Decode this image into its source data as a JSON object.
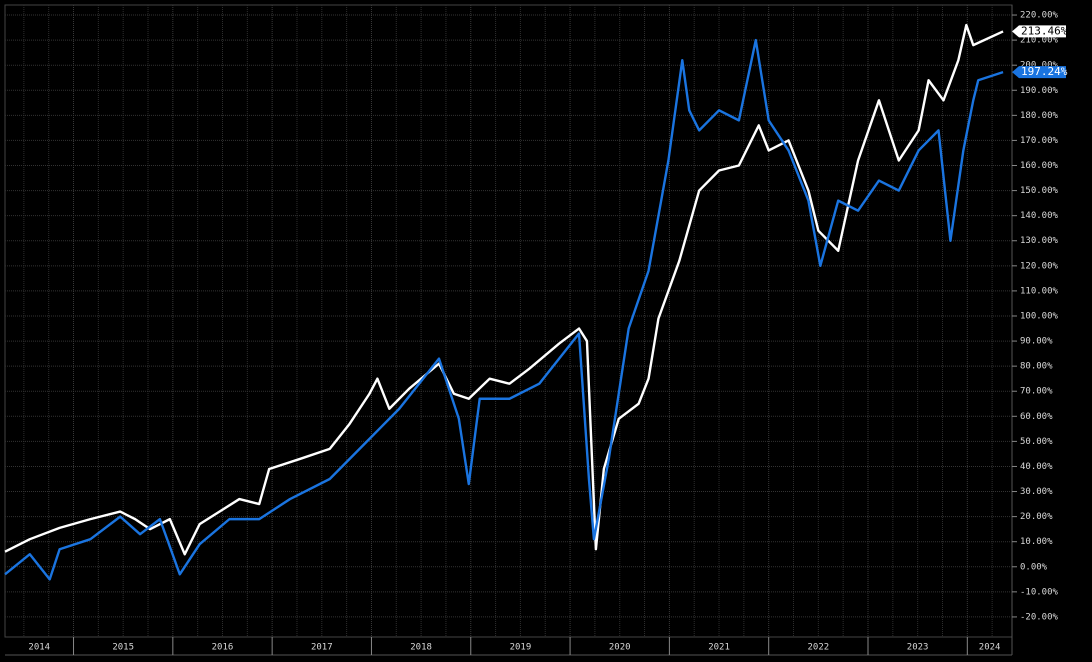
{
  "chart_data": {
    "type": "line",
    "xlim": [
      2014.31,
      2024.45
    ],
    "xticks": [
      {
        "value": 2014,
        "label": "2014"
      },
      {
        "value": 2015,
        "label": "2015"
      },
      {
        "value": 2016,
        "label": "2016"
      },
      {
        "value": 2017,
        "label": "2017"
      },
      {
        "value": 2018,
        "label": "2018"
      },
      {
        "value": 2019,
        "label": "2019"
      },
      {
        "value": 2020,
        "label": "2020"
      },
      {
        "value": 2021,
        "label": "2021"
      },
      {
        "value": 2022,
        "label": "2022"
      },
      {
        "value": 2023,
        "label": "2023"
      },
      {
        "value": 2024,
        "label": "2024"
      }
    ],
    "ylim": [
      -28,
      224
    ],
    "yticks": [
      {
        "value": -20,
        "label": "-20.00%"
      },
      {
        "value": -10,
        "label": "-10.00%"
      },
      {
        "value": 0,
        "label": "0.00%"
      },
      {
        "value": 10,
        "label": "10.00%"
      },
      {
        "value": 20,
        "label": "20.00%"
      },
      {
        "value": 30,
        "label": "30.00%"
      },
      {
        "value": 40,
        "label": "40.00%"
      },
      {
        "value": 50,
        "label": "50.00%"
      },
      {
        "value": 60,
        "label": "60.00%"
      },
      {
        "value": 70,
        "label": "70.00%"
      },
      {
        "value": 80,
        "label": "80.00%"
      },
      {
        "value": 90,
        "label": "90.00%"
      },
      {
        "value": 100,
        "label": "100.00%"
      },
      {
        "value": 110,
        "label": "110.00%"
      },
      {
        "value": 120,
        "label": "120.00%"
      },
      {
        "value": 130,
        "label": "130.00%"
      },
      {
        "value": 140,
        "label": "140.00%"
      },
      {
        "value": 150,
        "label": "150.00%"
      },
      {
        "value": 160,
        "label": "160.00%"
      },
      {
        "value": 170,
        "label": "170.00%"
      },
      {
        "value": 180,
        "label": "180.00%"
      },
      {
        "value": 190,
        "label": "190.00%"
      },
      {
        "value": 200,
        "label": "200.00%"
      },
      {
        "value": 210,
        "label": "210.00%"
      },
      {
        "value": 220,
        "label": "220.00%"
      }
    ],
    "grid": true,
    "series": [
      {
        "color": "#ffffff",
        "x": [
          2014.31,
          2014.56,
          2014.86,
          2015.17,
          2015.47,
          2015.62,
          2015.77,
          2015.97,
          2016.12,
          2016.27,
          2016.67,
          2016.87,
          2016.97,
          2017.28,
          2017.58,
          2017.78,
          2017.98,
          2018.06,
          2018.18,
          2018.38,
          2018.68,
          2018.83,
          2018.98,
          2019.19,
          2019.39,
          2019.59,
          2019.89,
          2020.09,
          2020.17,
          2020.26,
          2020.34,
          2020.49,
          2020.69,
          2020.79,
          2020.89,
          2021.1,
          2021.3,
          2021.5,
          2021.7,
          2021.9,
          2022.0,
          2022.2,
          2022.4,
          2022.5,
          2022.7,
          2022.9,
          2023.11,
          2023.31,
          2023.51,
          2023.61,
          2023.76,
          2023.91,
          2023.99,
          2024.06,
          2024.36
        ],
        "values": [
          6,
          11,
          15.5,
          19,
          22,
          19,
          15,
          19,
          5,
          17,
          27,
          25,
          39,
          43,
          47,
          57,
          69,
          75,
          63,
          71,
          81,
          69,
          67,
          75,
          73,
          79,
          89,
          95,
          90,
          7,
          39,
          59,
          65,
          75,
          99,
          122,
          150,
          158,
          160,
          176,
          166,
          170,
          150,
          134,
          126,
          162,
          186,
          162,
          174,
          194,
          186,
          202,
          216,
          208,
          213.46
        ],
        "value_labels": [
          null,
          null,
          null,
          null,
          null,
          null,
          null,
          null,
          null,
          null,
          null,
          null,
          null,
          null,
          null,
          null,
          null,
          null,
          null,
          null,
          null,
          null,
          null,
          null,
          null,
          null,
          null,
          null,
          null,
          null,
          null,
          null,
          null,
          null,
          null,
          null,
          null,
          null,
          null,
          null,
          null,
          null,
          null,
          null,
          null,
          null,
          null,
          null,
          null,
          null,
          null,
          null,
          null,
          null,
          "213.46%"
        ]
      },
      {
        "color": "#1a74e0",
        "x": [
          2014.31,
          2014.56,
          2014.76,
          2014.86,
          2015.17,
          2015.47,
          2015.67,
          2015.87,
          2016.07,
          2016.27,
          2016.57,
          2016.87,
          2017.18,
          2017.58,
          2017.98,
          2018.28,
          2018.68,
          2018.88,
          2018.98,
          2019.09,
          2019.39,
          2019.69,
          2020.09,
          2020.19,
          2020.24,
          2020.39,
          2020.59,
          2020.79,
          2020.99,
          2021.13,
          2021.2,
          2021.3,
          2021.5,
          2021.7,
          2021.87,
          2022.0,
          2022.2,
          2022.4,
          2022.52,
          2022.7,
          2022.9,
          2023.11,
          2023.31,
          2023.51,
          2023.71,
          2023.83,
          2023.96,
          2024.06,
          2024.11,
          2024.36
        ],
        "values": [
          -3,
          5,
          -5,
          7,
          11,
          20,
          13,
          19,
          -3,
          9,
          19,
          19,
          27,
          35,
          51,
          63,
          83,
          59,
          33,
          67,
          67,
          73,
          93,
          35,
          11,
          43,
          95,
          118,
          162,
          202,
          182,
          174,
          182,
          178,
          210,
          178,
          166,
          146,
          120,
          146,
          142,
          154,
          150,
          166,
          174,
          130,
          166,
          186,
          194,
          197.24
        ],
        "value_labels": [
          null,
          null,
          null,
          null,
          null,
          null,
          null,
          null,
          null,
          null,
          null,
          null,
          null,
          null,
          null,
          null,
          null,
          null,
          null,
          null,
          null,
          null,
          null,
          null,
          null,
          null,
          null,
          null,
          null,
          null,
          null,
          null,
          null,
          null,
          null,
          null,
          null,
          null,
          null,
          null,
          null,
          null,
          null,
          null,
          null,
          null,
          null,
          null,
          null,
          "197.24%"
        ]
      }
    ]
  }
}
